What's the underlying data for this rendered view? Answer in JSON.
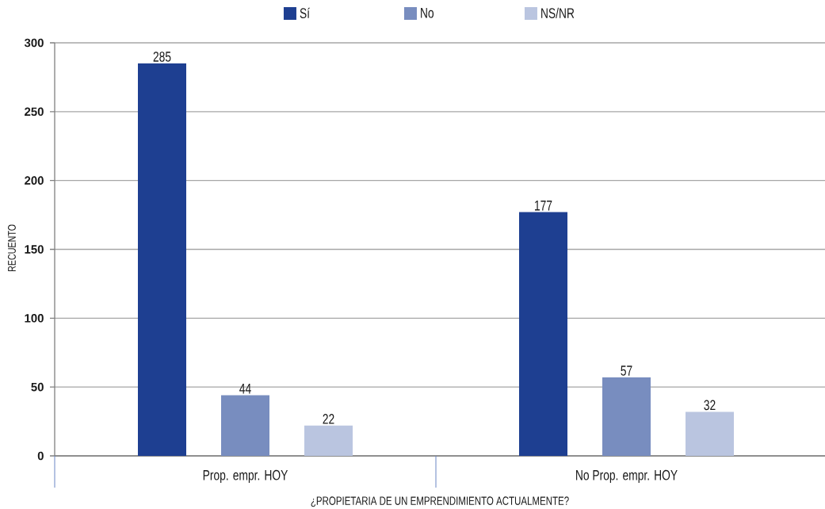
{
  "chart_data": {
    "type": "bar",
    "xlabel": "¿PROPIETARIA DE UN EMPRENDIMIENTO ACTUALMENTE?",
    "ylabel": "RECUENTO",
    "categories": [
      "Prop. empr. HOY",
      "No Prop. empr. HOY"
    ],
    "series": [
      {
        "name": "Sí",
        "color": "#1e3f91",
        "values": [
          285,
          177
        ]
      },
      {
        "name": "No",
        "color": "#788dbf",
        "values": [
          44,
          57
        ]
      },
      {
        "name": "NS/NR",
        "color": "#bac5e0",
        "values": [
          22,
          32
        ]
      }
    ],
    "ylim": [
      0,
      300
    ],
    "yticks": [
      0,
      50,
      100,
      150,
      200,
      250,
      300
    ],
    "grid": "y",
    "legend": "top",
    "data_labels": true
  }
}
